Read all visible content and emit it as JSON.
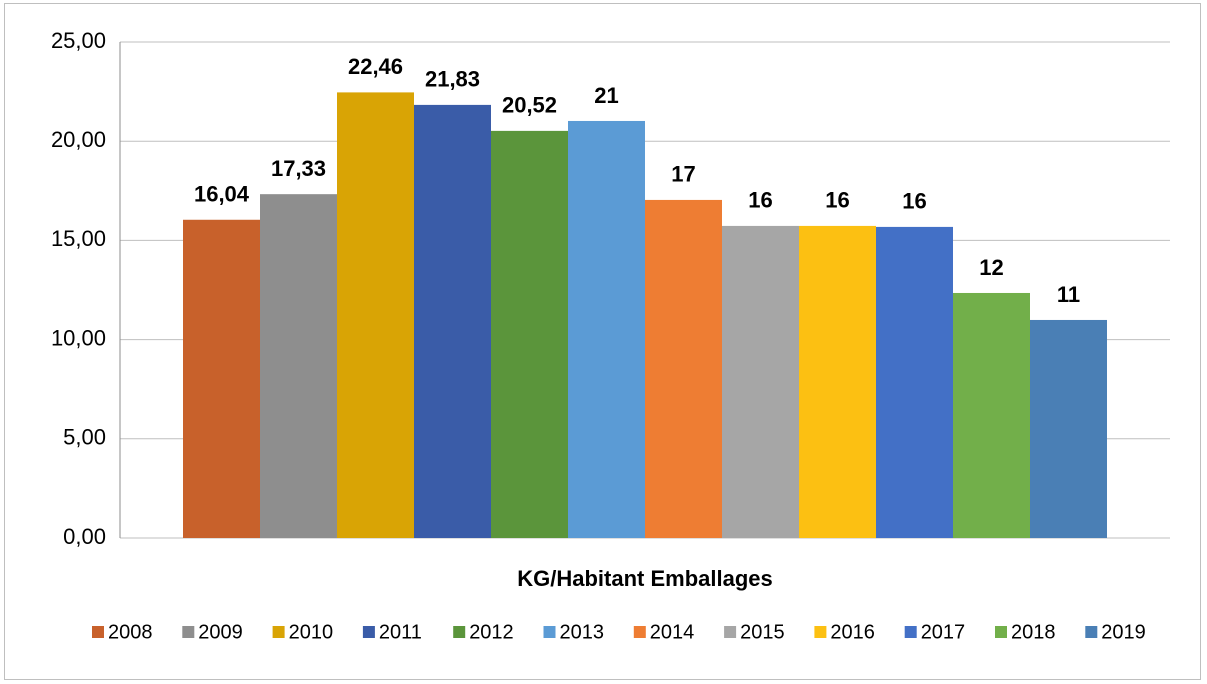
{
  "chart_data": {
    "type": "bar",
    "categories": [
      "KG/Habitant Emballages"
    ],
    "series": [
      {
        "name": "2008",
        "color": "#c8612b",
        "values": [
          16.04
        ],
        "value_labels": [
          "16,04"
        ]
      },
      {
        "name": "2009",
        "color": "#8e8e8e",
        "values": [
          17.33
        ],
        "value_labels": [
          "17,33"
        ]
      },
      {
        "name": "2010",
        "color": "#d9a405",
        "values": [
          22.46
        ],
        "value_labels": [
          "22,46"
        ]
      },
      {
        "name": "2011",
        "color": "#3a5ca8",
        "values": [
          21.83
        ],
        "value_labels": [
          "21,83"
        ]
      },
      {
        "name": "2012",
        "color": "#5b953b",
        "values": [
          20.52
        ],
        "value_labels": [
          "20,52"
        ]
      },
      {
        "name": "2013",
        "color": "#5b9bd5",
        "values": [
          21.02
        ],
        "value_labels": [
          "21"
        ]
      },
      {
        "name": "2014",
        "color": "#ee7d33",
        "values": [
          17.04
        ],
        "value_labels": [
          "17"
        ]
      },
      {
        "name": "2015",
        "color": "#a6a6a6",
        "values": [
          15.73
        ],
        "value_labels": [
          "16"
        ]
      },
      {
        "name": "2016",
        "color": "#fcc012",
        "values": [
          15.73
        ],
        "value_labels": [
          "16"
        ]
      },
      {
        "name": "2017",
        "color": "#4370c6",
        "values": [
          15.68
        ],
        "value_labels": [
          "16"
        ]
      },
      {
        "name": "2018",
        "color": "#72af4a",
        "values": [
          12.35
        ],
        "value_labels": [
          "12"
        ]
      },
      {
        "name": "2019",
        "color": "#4a7fb5",
        "values": [
          10.99
        ],
        "value_labels": [
          "11"
        ]
      }
    ],
    "ylim": [
      0,
      25
    ],
    "yticks": [
      {
        "value": 0,
        "label": "0,00"
      },
      {
        "value": 5,
        "label": "5,00"
      },
      {
        "value": 10,
        "label": "10,00"
      },
      {
        "value": 15,
        "label": "15,00"
      },
      {
        "value": 20,
        "label": "20,00"
      },
      {
        "value": 25,
        "label": "25,00"
      }
    ],
    "grid": true,
    "legend": "bottom"
  }
}
